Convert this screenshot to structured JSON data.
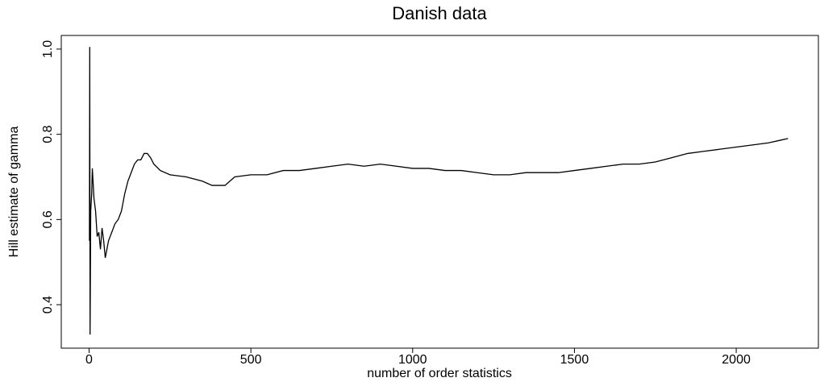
{
  "chart_data": {
    "type": "line",
    "title": "Danish data",
    "x_label": "number of order statistics",
    "y_label": "Hill estimate of gamma",
    "x": [
      1,
      2,
      3,
      5,
      8,
      10,
      15,
      20,
      25,
      30,
      35,
      40,
      45,
      50,
      55,
      60,
      70,
      80,
      90,
      100,
      110,
      120,
      130,
      140,
      150,
      160,
      170,
      180,
      190,
      200,
      220,
      250,
      300,
      350,
      380,
      420,
      450,
      500,
      550,
      600,
      650,
      700,
      750,
      800,
      850,
      900,
      950,
      1000,
      1050,
      1100,
      1150,
      1200,
      1250,
      1300,
      1350,
      1400,
      1450,
      1500,
      1550,
      1600,
      1650,
      1700,
      1750,
      1800,
      1850,
      1900,
      1950,
      2000,
      2050,
      2100,
      2130,
      2160
    ],
    "values": [
      0.55,
      1.005,
      0.33,
      0.62,
      0.66,
      0.72,
      0.65,
      0.62,
      0.56,
      0.57,
      0.53,
      0.58,
      0.55,
      0.51,
      0.53,
      0.55,
      0.57,
      0.59,
      0.6,
      0.62,
      0.66,
      0.69,
      0.71,
      0.73,
      0.74,
      0.74,
      0.755,
      0.755,
      0.745,
      0.73,
      0.715,
      0.705,
      0.7,
      0.69,
      0.68,
      0.68,
      0.7,
      0.705,
      0.705,
      0.715,
      0.715,
      0.72,
      0.725,
      0.73,
      0.725,
      0.73,
      0.725,
      0.72,
      0.72,
      0.715,
      0.715,
      0.71,
      0.705,
      0.705,
      0.71,
      0.71,
      0.71,
      0.715,
      0.72,
      0.725,
      0.73,
      0.73,
      0.735,
      0.745,
      0.755,
      0.76,
      0.765,
      0.77,
      0.775,
      0.78,
      0.785,
      0.79
    ],
    "color": "#000000",
    "xlim": [
      -86,
      2254
    ],
    "ylim": [
      0.298,
      1.032
    ],
    "xticks": [
      0,
      500,
      1000,
      1500,
      2000
    ],
    "yticks": [
      0.4,
      0.6,
      0.8,
      {
        "value": 1,
        "label": "1.0"
      }
    ],
    "grid": false
  }
}
